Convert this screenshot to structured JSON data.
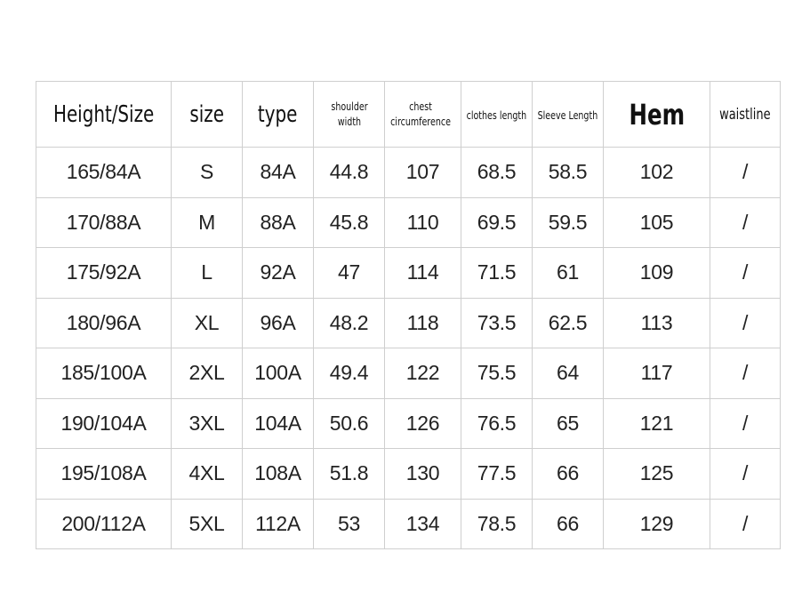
{
  "headers": [
    "Height/Size",
    "size",
    "type",
    "shoulder width",
    "chest circumference",
    "clothes length",
    "Sleeve Length",
    "Hem",
    "waistline"
  ],
  "rows": [
    [
      "165/84A",
      "S",
      "84A",
      "44.8",
      "107",
      "68.5",
      "58.5",
      "102",
      "/"
    ],
    [
      "170/88A",
      "M",
      "88A",
      "45.8",
      "110",
      "69.5",
      "59.5",
      "105",
      "/"
    ],
    [
      "175/92A",
      "L",
      "92A",
      "47",
      "114",
      "71.5",
      "61",
      "109",
      "/"
    ],
    [
      "180/96A",
      "XL",
      "96A",
      "48.2",
      "118",
      "73.5",
      "62.5",
      "113",
      "/"
    ],
    [
      "185/100A",
      "2XL",
      "100A",
      "49.4",
      "122",
      "75.5",
      "64",
      "117",
      "/"
    ],
    [
      "190/104A",
      "3XL",
      "104A",
      "50.6",
      "126",
      "76.5",
      "65",
      "121",
      "/"
    ],
    [
      "195/108A",
      "4XL",
      "108A",
      "51.8",
      "130",
      "77.5",
      "66",
      "125",
      "/"
    ],
    [
      "200/112A",
      "5XL",
      "112A",
      "53",
      "134",
      "78.5",
      "66",
      "129",
      "/"
    ]
  ]
}
